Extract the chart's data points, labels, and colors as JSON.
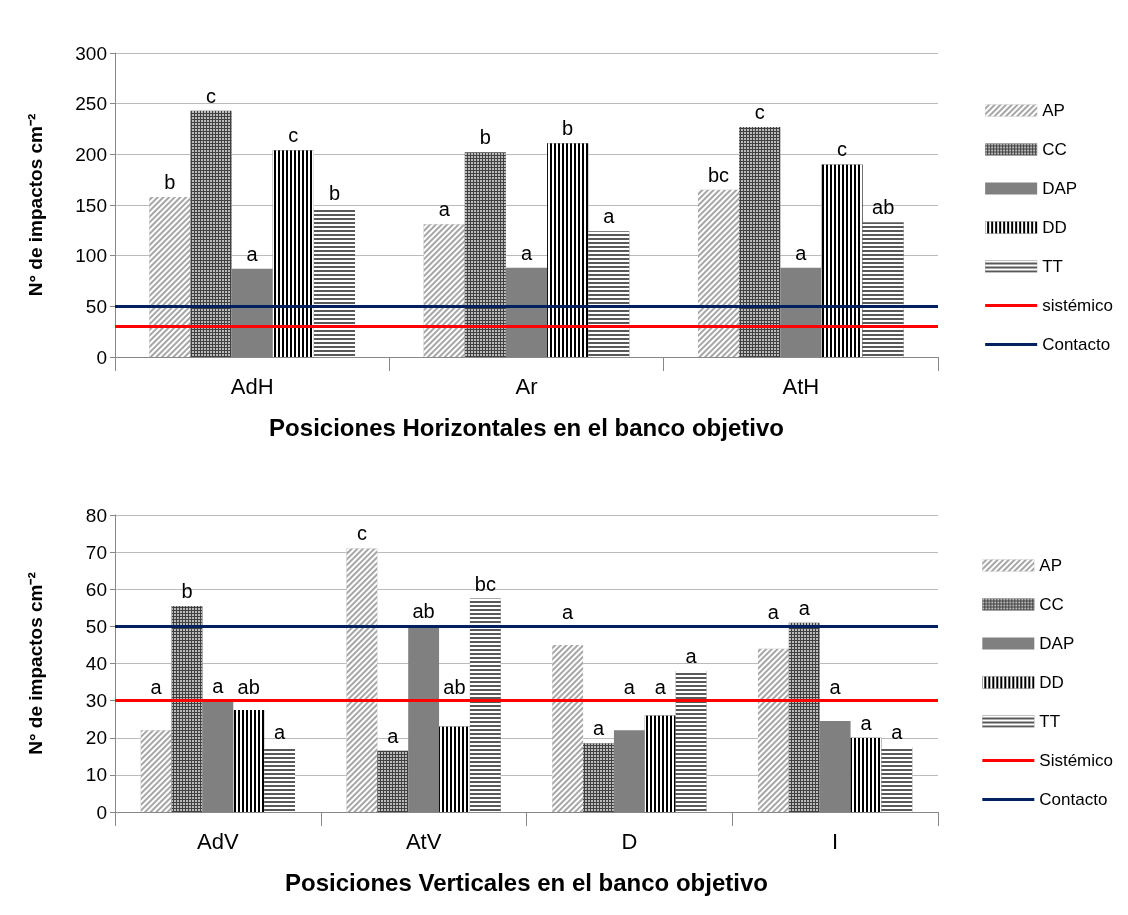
{
  "chart_data": [
    {
      "type": "bar",
      "xlabel": "Posiciones Horizontales en el banco objetivo",
      "ylabel": "N° de impactos cm⁻²",
      "categories": [
        "AdH",
        "Ar",
        "AtH"
      ],
      "series": [
        {
          "name": "AP",
          "color": "#a6a6a6",
          "values": [
            158,
            131,
            165
          ],
          "value_labels": [
            "b",
            "a",
            "bc"
          ]
        },
        {
          "name": "CC",
          "color": "#404040",
          "values": [
            243,
            202,
            227
          ],
          "value_labels": [
            "c",
            "b",
            "c"
          ]
        },
        {
          "name": "DAP",
          "color": "#808080",
          "values": [
            87,
            88,
            88
          ],
          "value_labels": [
            "a",
            "a",
            "a"
          ]
        },
        {
          "name": "DD",
          "color": "#000000",
          "values": [
            204,
            211,
            190
          ],
          "value_labels": [
            "c",
            "b",
            "c"
          ]
        },
        {
          "name": "TT",
          "color": "#595959",
          "values": [
            147,
            124,
            133
          ],
          "value_labels": [
            "b",
            "a",
            "ab"
          ]
        }
      ],
      "ref_lines": [
        {
          "axis": "y",
          "value": 30,
          "label": "sistémico",
          "color": "#ff0000"
        },
        {
          "axis": "y",
          "value": 50,
          "label": "Contacto",
          "color": "#002060"
        }
      ],
      "ylim": [
        0,
        300
      ],
      "yticks": [
        0,
        50,
        100,
        150,
        200,
        250,
        300
      ],
      "grid": "y",
      "legend": "right"
    },
    {
      "type": "bar",
      "xlabel": "Posiciones Verticales en el banco objetivo",
      "ylabel": "N° de impactos cm⁻²",
      "categories": [
        "AdV",
        "AtV",
        "D",
        "I"
      ],
      "series": [
        {
          "name": "AP",
          "color": "#a6a6a6",
          "values": [
            22,
            71,
            45,
            44
          ],
          "value_labels": [
            "a",
            "c",
            "a",
            "a"
          ]
        },
        {
          "name": "CC",
          "color": "#404040",
          "values": [
            55.5,
            16.5,
            18.5,
            51
          ],
          "value_labels": [
            "b",
            "a",
            "a",
            "a"
          ]
        },
        {
          "name": "DAP",
          "color": "#808080",
          "values": [
            30,
            50,
            22,
            24.5
          ],
          "value_labels": [
            "a",
            "ab",
            "a",
            "a"
          ]
        },
        {
          "name": "DD",
          "color": "#000000",
          "values": [
            27.5,
            23,
            26,
            20
          ],
          "value_labels": [
            "ab",
            "ab",
            "a",
            "a"
          ]
        },
        {
          "name": "TT",
          "color": "#595959",
          "values": [
            17.5,
            57.5,
            38,
            17.5
          ],
          "value_labels": [
            "a",
            "bc",
            "a",
            "a"
          ]
        }
      ],
      "ref_lines": [
        {
          "axis": "y",
          "value": 30,
          "label": "Sistémico",
          "color": "#ff0000"
        },
        {
          "axis": "y",
          "value": 50,
          "label": "Contacto",
          "color": "#002060"
        }
      ],
      "ylim": [
        0,
        80
      ],
      "yticks": [
        0,
        10,
        20,
        30,
        40,
        50,
        60,
        70,
        80
      ],
      "grid": "y",
      "legend": "right"
    }
  ]
}
